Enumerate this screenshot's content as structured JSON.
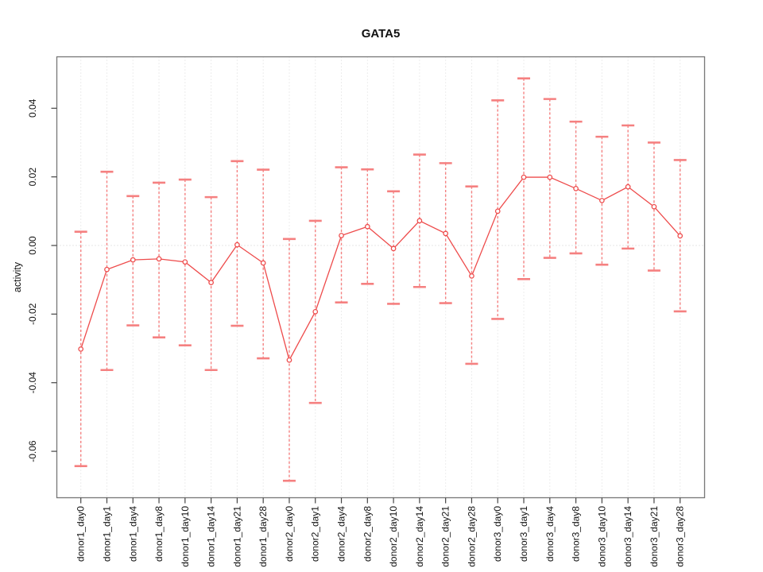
{
  "chart_data": {
    "type": "line",
    "title": "GATA5",
    "xlabel": "",
    "ylabel": "activity",
    "grid": "vertical-dotted",
    "zero_line": true,
    "legend": "none",
    "ylim": [
      -0.0735,
      0.0535
    ],
    "yticks": [
      0.04,
      0.02,
      0.0,
      -0.02,
      -0.04,
      -0.06
    ],
    "ytick_labels": [
      "0.04",
      "0.02",
      "0.00",
      "-0.02",
      "-0.04",
      "-0.06"
    ],
    "categories": [
      "donor1_day0",
      "donor1_day1",
      "donor1_day4",
      "donor1_day8",
      "donor1_day10",
      "donor1_day14",
      "donor1_day21",
      "donor1_day28",
      "donor2_day0",
      "donor2_day1",
      "donor2_day4",
      "donor2_day8",
      "donor2_day10",
      "donor2_day14",
      "donor2_day21",
      "donor2_day28",
      "donor3_day0",
      "donor3_day1",
      "donor3_day4",
      "donor3_day8",
      "donor3_day10",
      "donor3_day14",
      "donor3_day21",
      "donor3_day28"
    ],
    "series": [
      {
        "name": "activity",
        "marker": "open-circle",
        "values": [
          -0.0302,
          -0.007,
          -0.0042,
          -0.0039,
          -0.0048,
          -0.0108,
          0.0002,
          -0.0051,
          -0.0334,
          -0.0193,
          0.0029,
          0.0055,
          -0.0009,
          0.0072,
          0.0035,
          -0.0089,
          0.01,
          0.0199,
          0.0199,
          0.0166,
          0.0131,
          0.0171,
          0.0113,
          0.0028
        ],
        "error_low": [
          -0.0643,
          -0.0363,
          -0.0233,
          -0.0268,
          -0.0291,
          -0.0363,
          -0.0234,
          -0.0329,
          -0.0686,
          -0.0459,
          -0.0166,
          -0.0112,
          -0.017,
          -0.0121,
          -0.0168,
          -0.0345,
          -0.0214,
          -0.0098,
          -0.0036,
          -0.0023,
          -0.0056,
          -0.0009,
          -0.0073,
          -0.0192
        ],
        "error_high": [
          0.004,
          0.0215,
          0.0144,
          0.0183,
          0.0192,
          0.0141,
          0.0246,
          0.0221,
          0.0019,
          0.0072,
          0.0228,
          0.0222,
          0.0158,
          0.0265,
          0.024,
          0.0172,
          0.0423,
          0.0487,
          0.0427,
          0.0361,
          0.0317,
          0.035,
          0.03,
          0.0249
        ]
      }
    ],
    "colors": {
      "series": "#ee4b4b",
      "error_bar": "#f58080",
      "marker_fill": "#ffffff",
      "grid": "#dadada",
      "zero_line": "#c9c9c9",
      "box": "#777777",
      "tick": "#444444",
      "text": "#111111",
      "background": "#ffffff"
    }
  }
}
